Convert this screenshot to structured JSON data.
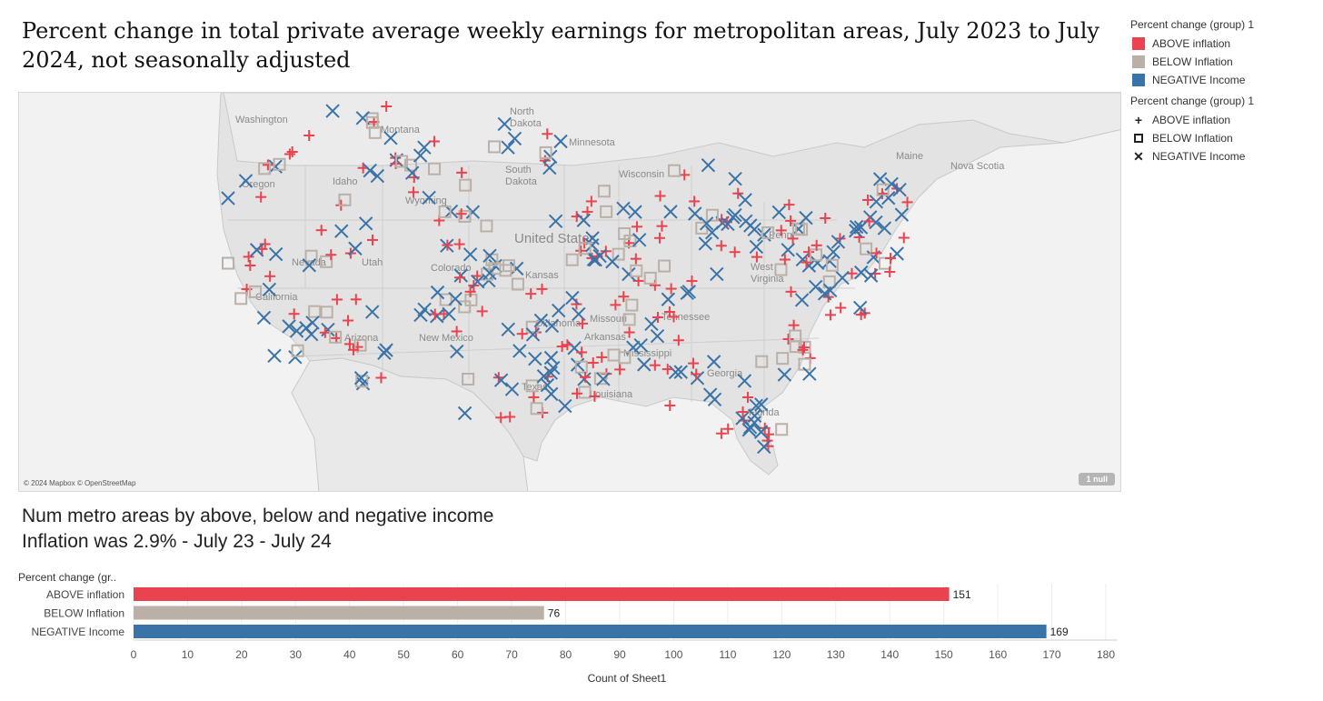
{
  "title": "Percent change in total private average weekly earnings for metropolitan areas, July 2023 to July 2024, not seasonally adjusted",
  "map": {
    "attribution": "© 2024 Mapbox © OpenStreetMap",
    "null_badge": "1 null",
    "labels": [
      "Washington",
      "Montana",
      "North Dakota",
      "Minnesota",
      "Maine",
      "Nova Scotia",
      "Wisconsin",
      "South Dakota",
      "Oregon",
      "Idaho",
      "Wyoming",
      "United States",
      "Nevada",
      "Utah",
      "Colorado",
      "Kansas",
      "California",
      "Missouri",
      "Penn.",
      "West Virginia",
      "Oklahoma",
      "Arkansas",
      "Arizona",
      "New Mexico",
      "Tennessee",
      "Mississippi",
      "Georgia",
      "Texas",
      "Louisiana",
      "Florida"
    ]
  },
  "legend": {
    "color_header": "Percent change (group) 1",
    "shape_header": "Percent change (group) 1",
    "items": [
      {
        "label": "ABOVE inflation",
        "color": "#e8434e",
        "symbol": "+"
      },
      {
        "label": "BELOW Inflation",
        "color": "#bbb0a8",
        "symbol": "square"
      },
      {
        "label": "NEGATIVE Income",
        "color": "#3a73a8",
        "symbol": "x"
      }
    ]
  },
  "subtitle_1": "Num metro areas by above, below and negative income",
  "subtitle_2": "Inflation was 2.9% - July 23 - July 24",
  "chart_data": {
    "type": "bar",
    "orientation": "horizontal",
    "row_header": "Percent change (gr..",
    "categories": [
      "ABOVE inflation",
      "BELOW Inflation",
      "NEGATIVE Income"
    ],
    "values": [
      151,
      76,
      169
    ],
    "colors": [
      "#e8434e",
      "#bbb0a8",
      "#3a73a8"
    ],
    "xlabel": "Count of Sheet1",
    "xlim": [
      0,
      180
    ],
    "ticks": [
      0,
      10,
      20,
      30,
      40,
      50,
      60,
      70,
      80,
      90,
      100,
      110,
      120,
      130,
      140,
      150,
      160,
      170,
      180
    ]
  }
}
